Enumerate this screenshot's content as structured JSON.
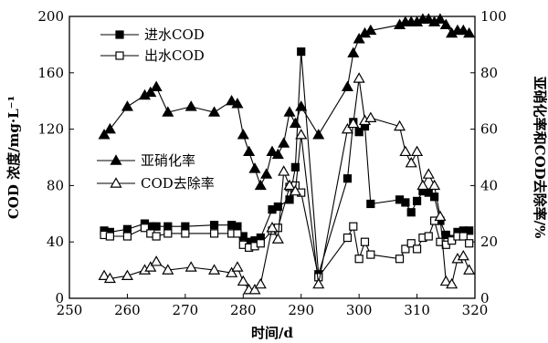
{
  "chart_data": {
    "type": "line",
    "xlabel": "时间/d",
    "ylabel_left": "COD 浓度/mg·L⁻¹",
    "ylabel_right": "亚硝化率和COD去除率/%",
    "xlim": [
      250,
      320
    ],
    "ylim_left": [
      0,
      200
    ],
    "ylim_right": [
      0,
      100
    ],
    "x_ticks": [
      250,
      260,
      270,
      280,
      290,
      300,
      310,
      320
    ],
    "y_left_ticks": [
      0,
      40,
      80,
      120,
      160,
      200
    ],
    "y_right_ticks": [
      0,
      20,
      40,
      60,
      80,
      100
    ],
    "legend_top": [
      {
        "name": "进水COD",
        "series": "influent"
      },
      {
        "name": "出水COD",
        "series": "effluent"
      }
    ],
    "legend_mid": [
      {
        "name": "亚硝化率",
        "series": "nitritation"
      },
      {
        "name": "COD去除率",
        "series": "removal"
      }
    ],
    "series": [
      {
        "key": "influent",
        "name": "进水COD",
        "axis": "left",
        "marker": "filled-square",
        "points": [
          [
            256,
            48
          ],
          [
            257,
            47
          ],
          [
            260,
            49
          ],
          [
            263,
            53
          ],
          [
            264,
            51
          ],
          [
            265,
            51
          ],
          [
            267,
            51
          ],
          [
            270,
            51
          ],
          [
            275,
            52
          ],
          [
            278,
            52
          ],
          [
            279,
            51
          ],
          [
            280,
            44
          ],
          [
            281,
            40
          ],
          [
            282,
            41
          ],
          [
            283,
            43
          ],
          [
            285,
            63
          ],
          [
            286,
            65
          ],
          [
            288,
            70
          ],
          [
            289,
            93
          ],
          [
            290,
            175
          ],
          [
            293,
            17
          ],
          [
            298,
            85
          ],
          [
            299,
            125
          ],
          [
            300,
            118
          ],
          [
            301,
            122
          ],
          [
            302,
            67
          ],
          [
            307,
            70
          ],
          [
            308,
            68
          ],
          [
            309,
            61
          ],
          [
            310,
            69
          ],
          [
            311,
            76
          ],
          [
            312,
            75
          ],
          [
            313,
            72
          ],
          [
            314,
            55
          ],
          [
            315,
            45
          ],
          [
            316,
            42
          ],
          [
            317,
            47
          ],
          [
            318,
            48
          ],
          [
            319,
            48
          ]
        ]
      },
      {
        "key": "effluent",
        "name": "出水COD",
        "axis": "left",
        "marker": "open-square",
        "points": [
          [
            256,
            45
          ],
          [
            257,
            44
          ],
          [
            260,
            44
          ],
          [
            263,
            50
          ],
          [
            264,
            46
          ],
          [
            265,
            44
          ],
          [
            267,
            46
          ],
          [
            270,
            46
          ],
          [
            275,
            46
          ],
          [
            278,
            46
          ],
          [
            279,
            46
          ],
          [
            280,
            38
          ],
          [
            281,
            36
          ],
          [
            282,
            37
          ],
          [
            283,
            39
          ],
          [
            285,
            48
          ],
          [
            286,
            50
          ],
          [
            288,
            79
          ],
          [
            289,
            80
          ],
          [
            290,
            75
          ],
          [
            293,
            15
          ],
          [
            298,
            43
          ],
          [
            299,
            51
          ],
          [
            300,
            28
          ],
          [
            301,
            40
          ],
          [
            302,
            31
          ],
          [
            307,
            28
          ],
          [
            308,
            35
          ],
          [
            309,
            39
          ],
          [
            310,
            35
          ],
          [
            311,
            43
          ],
          [
            312,
            44
          ],
          [
            313,
            55
          ],
          [
            314,
            40
          ],
          [
            315,
            38
          ],
          [
            316,
            41
          ],
          [
            317,
            44
          ],
          [
            318,
            44
          ],
          [
            319,
            39
          ]
        ]
      },
      {
        "key": "nitritation",
        "name": "亚硝化率",
        "axis": "right",
        "marker": "filled-triangle",
        "points": [
          [
            256,
            58
          ],
          [
            257,
            60
          ],
          [
            260,
            68
          ],
          [
            263,
            72
          ],
          [
            264,
            73
          ],
          [
            265,
            75
          ],
          [
            267,
            66
          ],
          [
            271,
            68
          ],
          [
            275,
            66
          ],
          [
            278,
            70
          ],
          [
            279,
            69
          ],
          [
            280,
            58
          ],
          [
            281,
            52
          ],
          [
            282,
            46
          ],
          [
            283,
            40
          ],
          [
            284,
            44
          ],
          [
            285,
            52
          ],
          [
            286,
            51
          ],
          [
            287,
            55
          ],
          [
            288,
            66
          ],
          [
            289,
            62
          ],
          [
            290,
            68
          ],
          [
            293,
            58
          ],
          [
            298,
            75
          ],
          [
            299,
            87
          ],
          [
            300,
            92
          ],
          [
            301,
            94
          ],
          [
            302,
            95
          ],
          [
            307,
            97
          ],
          [
            308,
            98
          ],
          [
            309,
            98
          ],
          [
            310,
            98
          ],
          [
            311,
            99
          ],
          [
            312,
            99
          ],
          [
            313,
            98
          ],
          [
            314,
            99
          ],
          [
            315,
            97
          ],
          [
            316,
            94
          ],
          [
            317,
            95
          ],
          [
            318,
            95
          ],
          [
            319,
            94
          ]
        ]
      },
      {
        "key": "removal",
        "name": "COD去除率",
        "axis": "right",
        "marker": "open-triangle",
        "points": [
          [
            256,
            8
          ],
          [
            257,
            7
          ],
          [
            260,
            8
          ],
          [
            263,
            10
          ],
          [
            264,
            11
          ],
          [
            265,
            13
          ],
          [
            267,
            10
          ],
          [
            271,
            11
          ],
          [
            275,
            10
          ],
          [
            278,
            9
          ],
          [
            279,
            11
          ],
          [
            280,
            6
          ],
          [
            281,
            3
          ],
          [
            282,
            3
          ],
          [
            283,
            5
          ],
          [
            285,
            25
          ],
          [
            286,
            21
          ],
          [
            287,
            45
          ],
          [
            288,
            40
          ],
          [
            289,
            38
          ],
          [
            290,
            58
          ],
          [
            293,
            5
          ],
          [
            298,
            60
          ],
          [
            299,
            62
          ],
          [
            300,
            78
          ],
          [
            301,
            63
          ],
          [
            302,
            64
          ],
          [
            307,
            61
          ],
          [
            308,
            52
          ],
          [
            309,
            48
          ],
          [
            310,
            52
          ],
          [
            311,
            40
          ],
          [
            312,
            44
          ],
          [
            313,
            40
          ],
          [
            314,
            29
          ],
          [
            315,
            6
          ],
          [
            316,
            5
          ],
          [
            317,
            14
          ],
          [
            318,
            15
          ],
          [
            319,
            10
          ]
        ]
      }
    ]
  }
}
